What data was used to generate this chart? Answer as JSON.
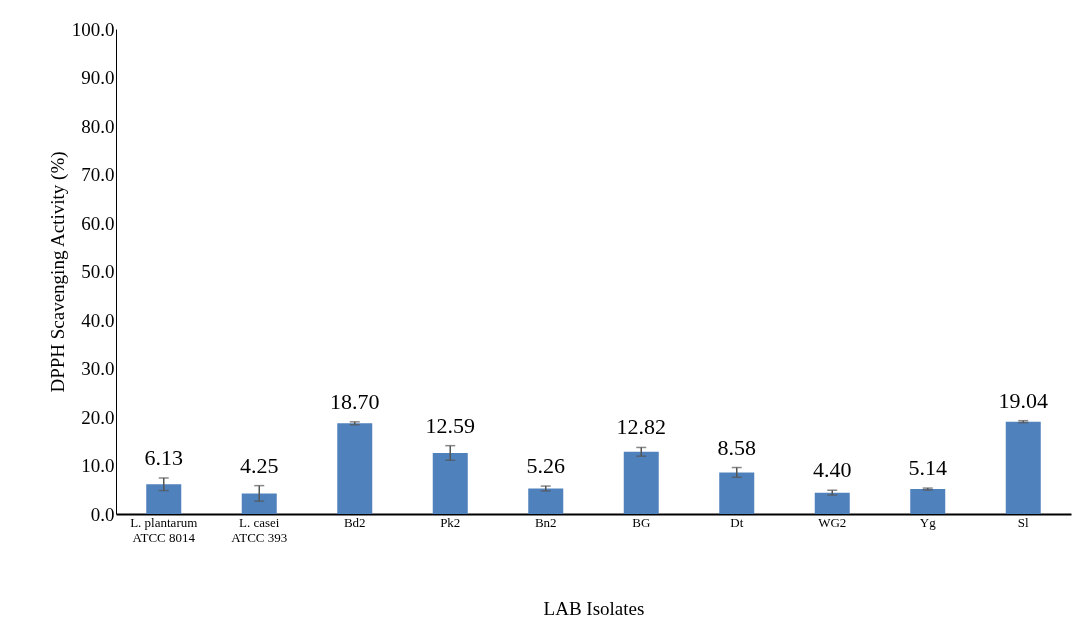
{
  "chart_data": {
    "type": "bar",
    "xlabel": "LAB Isolates",
    "ylabel": "DPPH Scavenging Activity  (%)",
    "categories": [
      "L. plantarum\nATCC 8014",
      "L. casei\nATCC 393",
      "Bd2",
      "Pk2",
      "Bn2",
      "BG",
      "Dt",
      "WG2",
      "Yg",
      "Sl"
    ],
    "values": [
      6.13,
      4.25,
      18.7,
      12.59,
      5.26,
      12.82,
      8.58,
      4.4,
      5.14,
      19.04
    ],
    "errors": [
      1.3,
      1.6,
      0.3,
      1.5,
      0.5,
      0.9,
      1.0,
      0.5,
      0.2,
      0.2
    ],
    "value_labels": [
      "6.13",
      "4.25",
      "18.70",
      "12.59",
      "5.26",
      "12.82",
      "8.58",
      "4.40",
      "5.14",
      "19.04"
    ],
    "color": "#4f81bd",
    "ylim": [
      0,
      100
    ],
    "yticks": [
      {
        "value": 0,
        "label": "0.0"
      },
      {
        "value": 10,
        "label": "10.0"
      },
      {
        "value": 20,
        "label": "20.0"
      },
      {
        "value": 30,
        "label": "30.0"
      },
      {
        "value": 40,
        "label": "40.0"
      },
      {
        "value": 50,
        "label": "50.0"
      },
      {
        "value": 60,
        "label": "60.0"
      },
      {
        "value": 70,
        "label": "70.0"
      },
      {
        "value": 80,
        "label": "80.0"
      },
      {
        "value": 90,
        "label": "90.0"
      },
      {
        "value": 100,
        "label": "100.0"
      }
    ],
    "grid": false
  }
}
